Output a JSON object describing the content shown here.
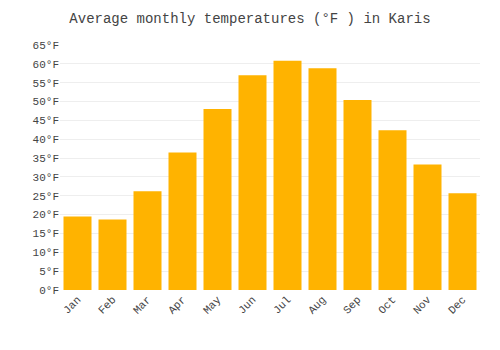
{
  "chart_data": {
    "type": "bar",
    "title": "Average monthly temperatures (°F ) in Karis",
    "categories": [
      "Jan",
      "Feb",
      "Mar",
      "Apr",
      "May",
      "Jun",
      "Jul",
      "Aug",
      "Sep",
      "Oct",
      "Nov",
      "Dec"
    ],
    "values": [
      19.5,
      18.7,
      26.2,
      36.5,
      48.0,
      57.0,
      60.8,
      58.8,
      50.4,
      42.4,
      33.3,
      25.7
    ],
    "color": "#FFB300",
    "ylim": [
      0,
      65
    ],
    "yticks": [
      {
        "value": 0,
        "label": "0°F"
      },
      {
        "value": 5,
        "label": "5°F"
      },
      {
        "value": 10,
        "label": "10°F"
      },
      {
        "value": 15,
        "label": "15°F"
      },
      {
        "value": 20,
        "label": "20°F"
      },
      {
        "value": 25,
        "label": "25°F"
      },
      {
        "value": 30,
        "label": "30°F"
      },
      {
        "value": 35,
        "label": "35°F"
      },
      {
        "value": 40,
        "label": "40°F"
      },
      {
        "value": 45,
        "label": "45°F"
      },
      {
        "value": 50,
        "label": "50°F"
      },
      {
        "value": 55,
        "label": "55°F"
      },
      {
        "value": 60,
        "label": "60°F"
      },
      {
        "value": 65,
        "label": "65°F"
      }
    ],
    "grid": true
  }
}
